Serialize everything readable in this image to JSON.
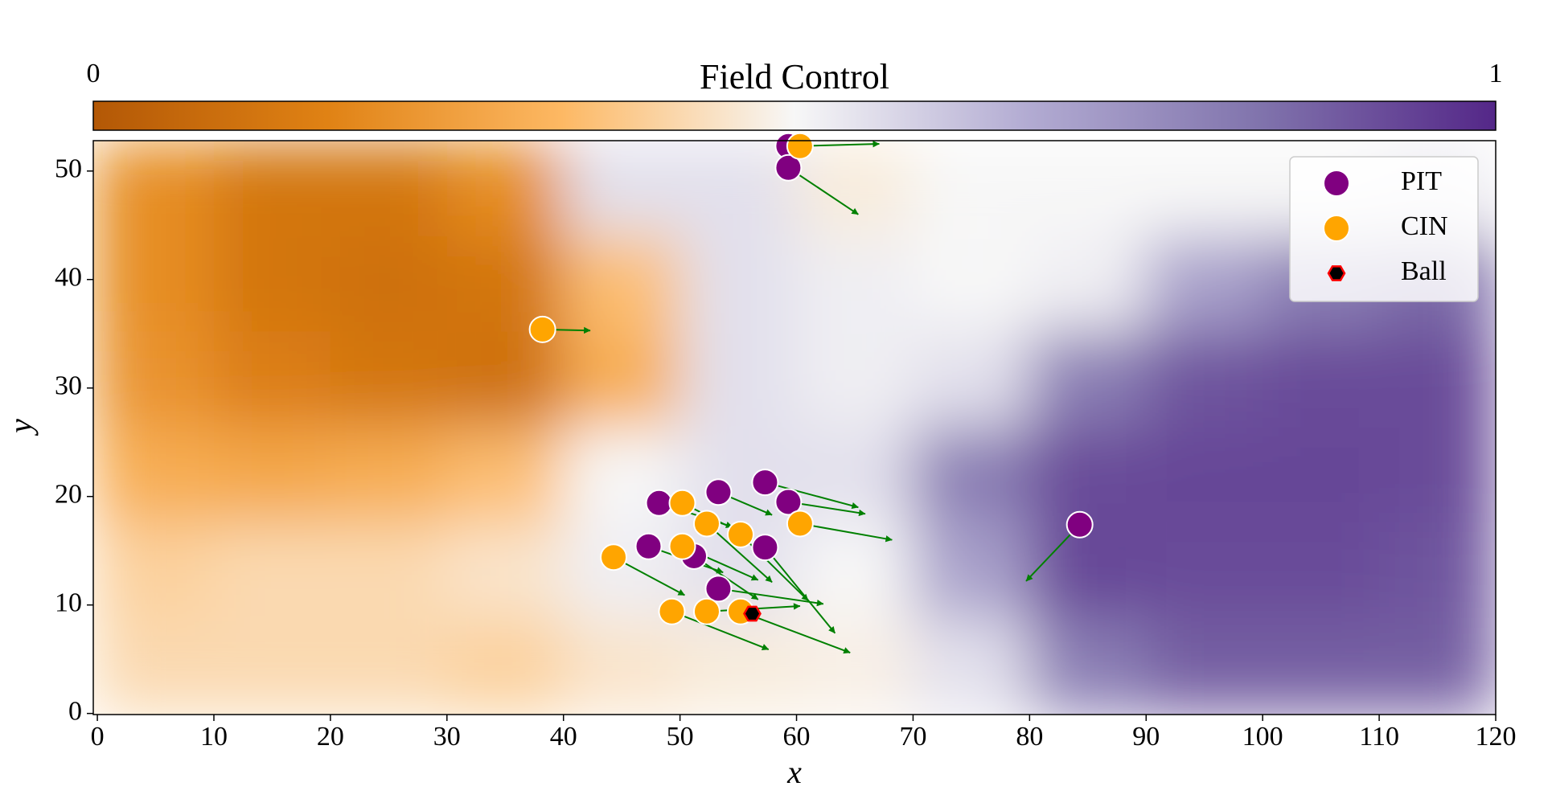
{
  "chart_data": {
    "type": "scatter",
    "colorbar": {
      "title": "Field Control",
      "min_label": "0",
      "max_label": "1"
    },
    "colormap": [
      "#b35806",
      "#e08214",
      "#fdb863",
      "#f7f7f7",
      "#b2abd2",
      "#8073ac",
      "#542788"
    ],
    "field": {
      "x": [
        5,
        15,
        25,
        35,
        45,
        55,
        65,
        75,
        85,
        95,
        105,
        115
      ],
      "y": [
        48.4,
        39.6,
        30.8,
        22,
        13.2,
        4.4
      ],
      "cell_width": 10,
      "cell_height": 8.8,
      "values": [
        [
          0.2,
          0.12,
          0.12,
          0.2,
          0.55,
          0.55,
          0.47,
          0.5,
          0.5,
          0.5,
          0.5,
          0.52
        ],
        [
          0.2,
          0.12,
          0.1,
          0.12,
          0.35,
          0.55,
          0.52,
          0.5,
          0.52,
          0.7,
          0.8,
          0.85
        ],
        [
          0.22,
          0.15,
          0.12,
          0.1,
          0.3,
          0.55,
          0.52,
          0.55,
          0.8,
          0.9,
          0.92,
          0.92
        ],
        [
          0.3,
          0.28,
          0.3,
          0.35,
          0.5,
          0.55,
          0.55,
          0.8,
          0.92,
          0.93,
          0.93,
          0.92
        ],
        [
          0.4,
          0.42,
          0.42,
          0.45,
          0.52,
          0.55,
          0.5,
          0.7,
          0.93,
          0.92,
          0.92,
          0.9
        ],
        [
          0.42,
          0.42,
          0.42,
          0.4,
          0.45,
          0.47,
          0.48,
          0.55,
          0.8,
          0.88,
          0.88,
          0.88
        ]
      ]
    },
    "series": [
      {
        "name": "PIT",
        "color": "#800080",
        "x": [
          59.3,
          59.3,
          84.3,
          57.3,
          53.3,
          48.2,
          59.3,
          47.3,
          51.2,
          57.3,
          53.3
        ],
        "y": [
          52.3,
          50.3,
          17.4,
          21.3,
          20.4,
          19.4,
          19.5,
          15.4,
          14.5,
          15.3,
          11.5
        ],
        "arrow_x": [
          null,
          65.3,
          79.7,
          65.3,
          57.9,
          54.5,
          65.9,
          53.7,
          56.7,
          63.3,
          62.3
        ],
        "arrow_y": [
          null,
          46.0,
          12.2,
          19.0,
          18.3,
          17.2,
          18.4,
          13.0,
          10.5,
          7.4,
          10.1
        ]
      },
      {
        "name": "CIN",
        "color": "#ffa500",
        "x": [
          60.3,
          38.2,
          50.2,
          52.3,
          55.2,
          60.3,
          44.3,
          50.2,
          49.3,
          52.3,
          55.2
        ],
        "y": [
          52.3,
          35.4,
          19.4,
          17.5,
          16.5,
          17.5,
          14.4,
          15.4,
          9.4,
          9.4,
          9.4
        ],
        "arrow_x": [
          67.1,
          42.3,
          55.9,
          57.9,
          61.0,
          68.2,
          50.4,
          56.7,
          57.6,
          60.3,
          64.6
        ],
        "arrow_y": [
          52.5,
          35.3,
          16.3,
          12.1,
          10.4,
          16.0,
          10.9,
          12.3,
          5.9,
          9.9,
          5.6
        ]
      },
      {
        "name": "Ball",
        "color": "#000000",
        "edge_color": "#ff0000",
        "marker": "hexagon",
        "x": [
          56.2
        ],
        "y": [
          9.2
        ]
      }
    ],
    "arrow_color": "#008000",
    "xlabel": "x",
    "ylabel": "y",
    "xlim": [
      -0.35,
      120
    ],
    "ylim": [
      -0.1,
      52.8
    ],
    "xticks": [
      0,
      10,
      20,
      30,
      40,
      50,
      60,
      70,
      80,
      90,
      100,
      110,
      120
    ],
    "yticks": [
      0,
      10,
      20,
      30,
      40,
      50
    ],
    "legend": "upper right"
  }
}
